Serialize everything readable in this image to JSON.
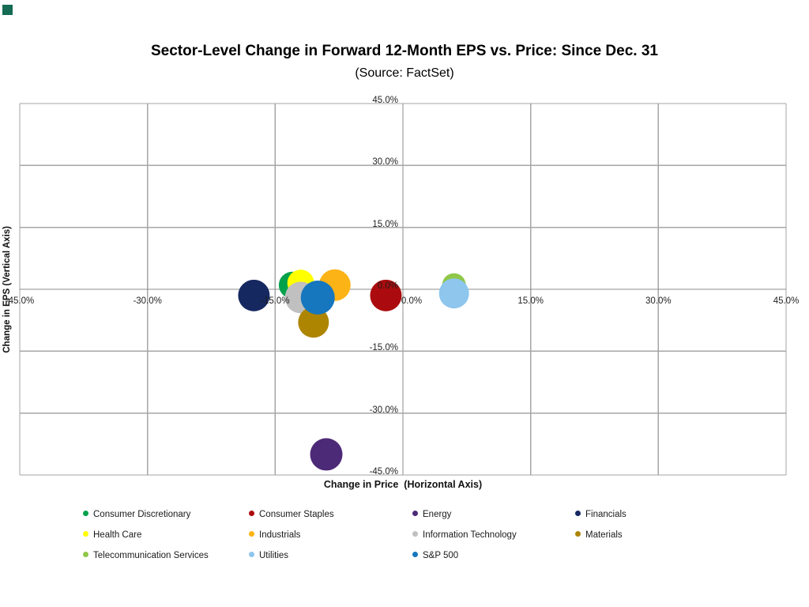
{
  "page": {
    "corner_mark_color": "#156B54"
  },
  "header": {
    "title": "Sector-Level Change in Forward 12-Month EPS vs. Price: Since Dec. 31",
    "subtitle": "(Source: FactSet)"
  },
  "chart_data": {
    "type": "scatter",
    "title": "Sector-Level Change in Forward 12-Month EPS vs. Price: Since Dec. 31",
    "subtitle": "(Source: FactSet)",
    "xlabel": "Change in Price  (Horizontal Axis)",
    "ylabel": "Change in EPS (Vertical Axis)",
    "xlim": [
      -45,
      45
    ],
    "ylim": [
      -45,
      45
    ],
    "x_ticks": [
      -45,
      -30,
      -15,
      0,
      15,
      30,
      45
    ],
    "y_ticks": [
      45,
      30,
      15,
      0,
      -15,
      -30,
      -45
    ],
    "tick_suffix": "%",
    "grid": true,
    "gridline_color": "#A6A6A6",
    "zero_axis_color": "#8C8C8C",
    "legend_position": "bottom",
    "series": [
      {
        "name": "Consumer Discretionary",
        "color": "#00A14B",
        "x": -13.0,
        "y": 1.0,
        "r": 17
      },
      {
        "name": "Consumer Staples",
        "color": "#AB0B0E",
        "x": -2.0,
        "y": -1.5,
        "r": 20
      },
      {
        "name": "Energy",
        "color": "#4D2A77",
        "x": -9.0,
        "y": -40.0,
        "r": 20.5
      },
      {
        "name": "Financials",
        "color": "#152860",
        "x": -17.5,
        "y": -1.5,
        "r": 20
      },
      {
        "name": "Health Care",
        "color": "#FFFF00",
        "x": -12.0,
        "y": 1.5,
        "r": 17
      },
      {
        "name": "Industrials",
        "color": "#FCB315",
        "x": -8.0,
        "y": 1.0,
        "r": 20
      },
      {
        "name": "Information Technology",
        "color": "#C0C0C0",
        "x": -12.0,
        "y": -2.0,
        "r": 20
      },
      {
        "name": "Materials",
        "color": "#AD8500",
        "x": -10.5,
        "y": -8.0,
        "r": 19.5
      },
      {
        "name": "Telecommunication Services",
        "color": "#8FC749",
        "x": 6.0,
        "y": 1.0,
        "r": 15
      },
      {
        "name": "Utilities",
        "color": "#8EC6EE",
        "x": 6.0,
        "y": -1.0,
        "r": 19
      },
      {
        "name": "S&P 500",
        "color": "#1676BE",
        "x": -10.0,
        "y": -2.0,
        "r": 21.5
      }
    ]
  }
}
